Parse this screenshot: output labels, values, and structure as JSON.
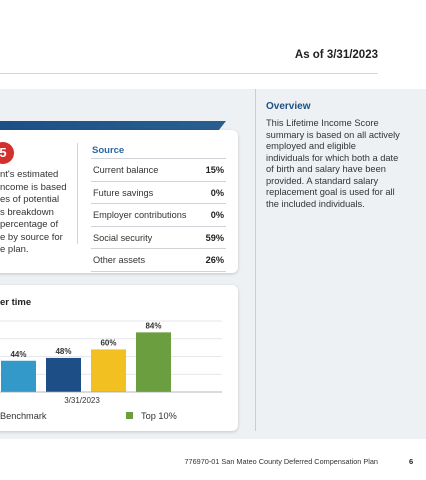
{
  "header": {
    "as_of": "As of 3/31/2023"
  },
  "score_card": {
    "badge": "5",
    "description_lines": [
      "nt's estimated",
      "ncome is based",
      "es of potential",
      "s breakdown",
      "percentage of",
      "e by source for",
      "e plan."
    ],
    "source_heading": "Source",
    "sources": [
      {
        "label": "Current balance",
        "value": "15%"
      },
      {
        "label": "Future savings",
        "value": "0%"
      },
      {
        "label": "Employer contributions",
        "value": "0%"
      },
      {
        "label": "Social security",
        "value": "59%"
      },
      {
        "label": "Other assets",
        "value": "26%"
      }
    ]
  },
  "trend_card": {
    "title": "er time",
    "legend_benchmark": "Benchmark",
    "legend_top": "Top 10%"
  },
  "chart_data": {
    "type": "bar",
    "categories": [
      "3/31/2023"
    ],
    "series": [
      {
        "name": "",
        "values": [
          44
        ],
        "color": "#3399c9"
      },
      {
        "name": "",
        "values": [
          48
        ],
        "color": "#1d4f86"
      },
      {
        "name": "",
        "values": [
          60
        ],
        "color": "#f2c020"
      },
      {
        "name": "Top 10%",
        "values": [
          84
        ],
        "color": "#6a9e3f"
      }
    ],
    "data_labels": [
      "44%",
      "48%",
      "60%",
      "84%"
    ],
    "title": "",
    "xlabel": "",
    "ylabel": "",
    "ylim": [
      0,
      100
    ],
    "grid": true
  },
  "overview": {
    "heading": "Overview",
    "lines": [
      "This Lifetime Income Score",
      "summary is based on all actively",
      "employed and eligible",
      "individuals for which both a date",
      "of birth and salary have been",
      "provided. A standard salary",
      "replacement goal is used for all",
      "the included individuals."
    ]
  },
  "footer": {
    "text": "776970-01 San Mateo County Deferred Compensation Plan",
    "page": "6"
  },
  "colors": {
    "accent": "#1d4f86",
    "badge": "#d32f2f",
    "band": "#eef1f4"
  }
}
